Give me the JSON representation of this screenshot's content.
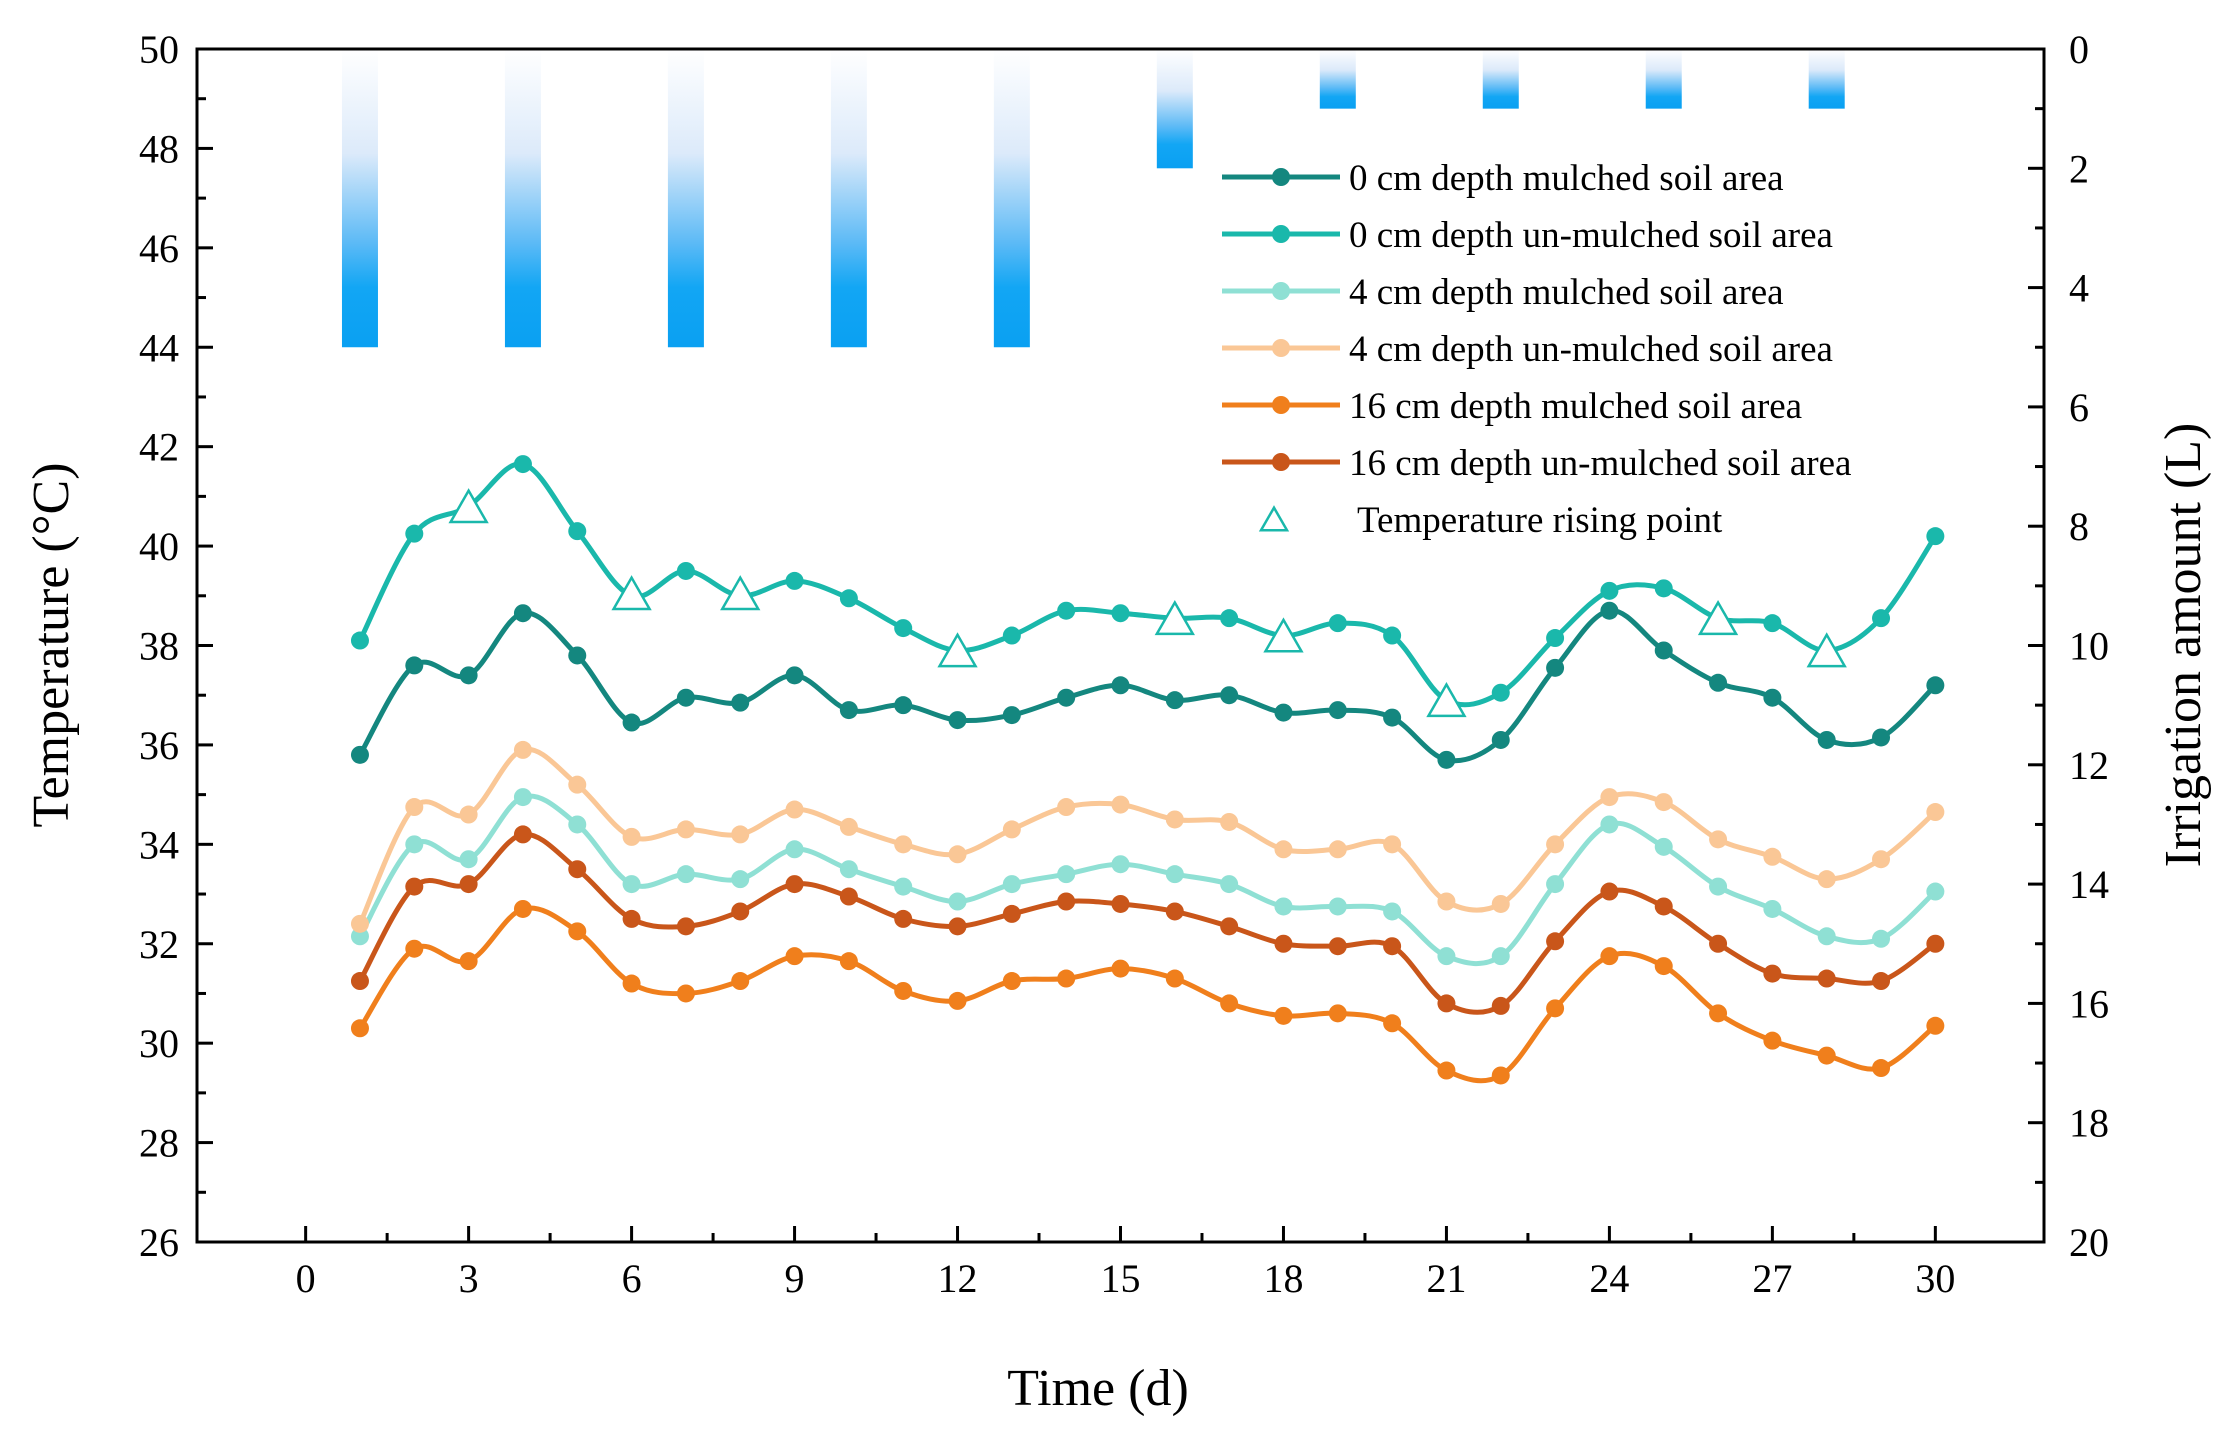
{
  "chart_data": {
    "type": "line",
    "x": [
      1,
      2,
      3,
      4,
      5,
      6,
      7,
      8,
      9,
      10,
      11,
      12,
      13,
      14,
      15,
      16,
      17,
      18,
      19,
      20,
      21,
      22,
      23,
      24,
      25,
      26,
      27,
      28,
      29,
      30
    ],
    "xlabel": "Time (d)",
    "ylabel": "Temperature (°C)",
    "y2label": "Irrigation amount (L)",
    "xlim": [
      -2,
      32
    ],
    "ylim": [
      26,
      50
    ],
    "y2lim": [
      0,
      20
    ],
    "y2_inverted": true,
    "xticks": [
      "0",
      "3",
      "6",
      "9",
      "12",
      "15",
      "18",
      "21",
      "24",
      "27",
      "30"
    ],
    "yticks": [
      "26",
      "28",
      "30",
      "32",
      "34",
      "36",
      "38",
      "40",
      "42",
      "44",
      "46",
      "48",
      "50"
    ],
    "y2ticks": [
      "0",
      "2",
      "4",
      "6",
      "8",
      "10",
      "12",
      "14",
      "16",
      "18",
      "20"
    ],
    "legend_position": "top-right",
    "series": [
      {
        "name": "0 cm depth mulched soil area",
        "color": "#14877f",
        "values": [
          35.8,
          37.6,
          37.4,
          38.65,
          37.8,
          36.45,
          36.95,
          36.85,
          37.4,
          36.7,
          36.8,
          36.5,
          36.6,
          36.95,
          37.2,
          36.9,
          37.0,
          36.65,
          36.7,
          36.55,
          35.7,
          36.1,
          37.55,
          38.7,
          37.9,
          37.25,
          36.95,
          36.1,
          36.15,
          37.2
        ]
      },
      {
        "name": "0 cm depth un-mulched soil area",
        "color": "#1ab8ab",
        "values": [
          38.1,
          40.25,
          40.8,
          41.65,
          40.3,
          39.0,
          39.5,
          39.0,
          39.3,
          38.95,
          38.35,
          37.9,
          38.2,
          38.7,
          38.65,
          38.55,
          38.55,
          38.2,
          38.45,
          38.2,
          36.9,
          37.05,
          38.15,
          39.1,
          39.15,
          38.55,
          38.45,
          37.9,
          38.55,
          40.2
        ]
      },
      {
        "name": "4 cm depth mulched soil area",
        "color": "#8fe0d4",
        "values": [
          32.15,
          34.0,
          33.7,
          34.95,
          34.4,
          33.2,
          33.4,
          33.3,
          33.9,
          33.5,
          33.15,
          32.85,
          33.2,
          33.4,
          33.6,
          33.4,
          33.2,
          32.75,
          32.75,
          32.65,
          31.75,
          31.75,
          33.2,
          34.4,
          33.95,
          33.15,
          32.7,
          32.15,
          32.1,
          33.05
        ]
      },
      {
        "name": "4 cm depth un-mulched soil area",
        "color": "#fac796",
        "values": [
          32.4,
          34.75,
          34.6,
          35.9,
          35.2,
          34.15,
          34.3,
          34.2,
          34.7,
          34.35,
          34.0,
          33.8,
          34.3,
          34.75,
          34.8,
          34.5,
          34.45,
          33.9,
          33.9,
          34.0,
          32.85,
          32.8,
          34.0,
          34.95,
          34.85,
          34.1,
          33.75,
          33.3,
          33.7,
          34.65
        ]
      },
      {
        "name": "16 cm depth mulched soil area",
        "color": "#f07f1c",
        "values": [
          30.3,
          31.9,
          31.65,
          32.7,
          32.25,
          31.2,
          31.0,
          31.25,
          31.75,
          31.65,
          31.05,
          30.85,
          31.25,
          31.3,
          31.5,
          31.3,
          30.8,
          30.55,
          30.6,
          30.4,
          29.45,
          29.35,
          30.7,
          31.75,
          31.55,
          30.6,
          30.05,
          29.75,
          29.5,
          30.35
        ]
      },
      {
        "name": "16 cm depth un-mulched soil area",
        "color": "#c9561a",
        "values": [
          31.25,
          33.15,
          33.2,
          34.2,
          33.5,
          32.5,
          32.35,
          32.65,
          33.2,
          32.95,
          32.5,
          32.35,
          32.6,
          32.85,
          32.8,
          32.65,
          32.35,
          32.0,
          31.95,
          31.95,
          30.8,
          30.75,
          32.05,
          33.05,
          32.75,
          32.0,
          31.4,
          31.3,
          31.25,
          32.0
        ]
      }
    ],
    "rising_points": {
      "name": "Temperature rising point",
      "color": "#1ab8ab",
      "x": [
        3,
        6,
        8,
        12,
        16,
        18,
        21,
        26,
        28
      ],
      "y": [
        40.8,
        39.05,
        39.05,
        37.9,
        38.55,
        38.2,
        36.9,
        38.55,
        37.9
      ]
    },
    "irrigation": {
      "name": "Irrigation amount (L)",
      "color": "#12a6f4",
      "x": [
        1,
        4,
        7,
        10,
        13,
        16,
        19,
        22,
        25,
        28
      ],
      "values": [
        5,
        5,
        5,
        5,
        5,
        2,
        1,
        1,
        1,
        1
      ]
    }
  }
}
